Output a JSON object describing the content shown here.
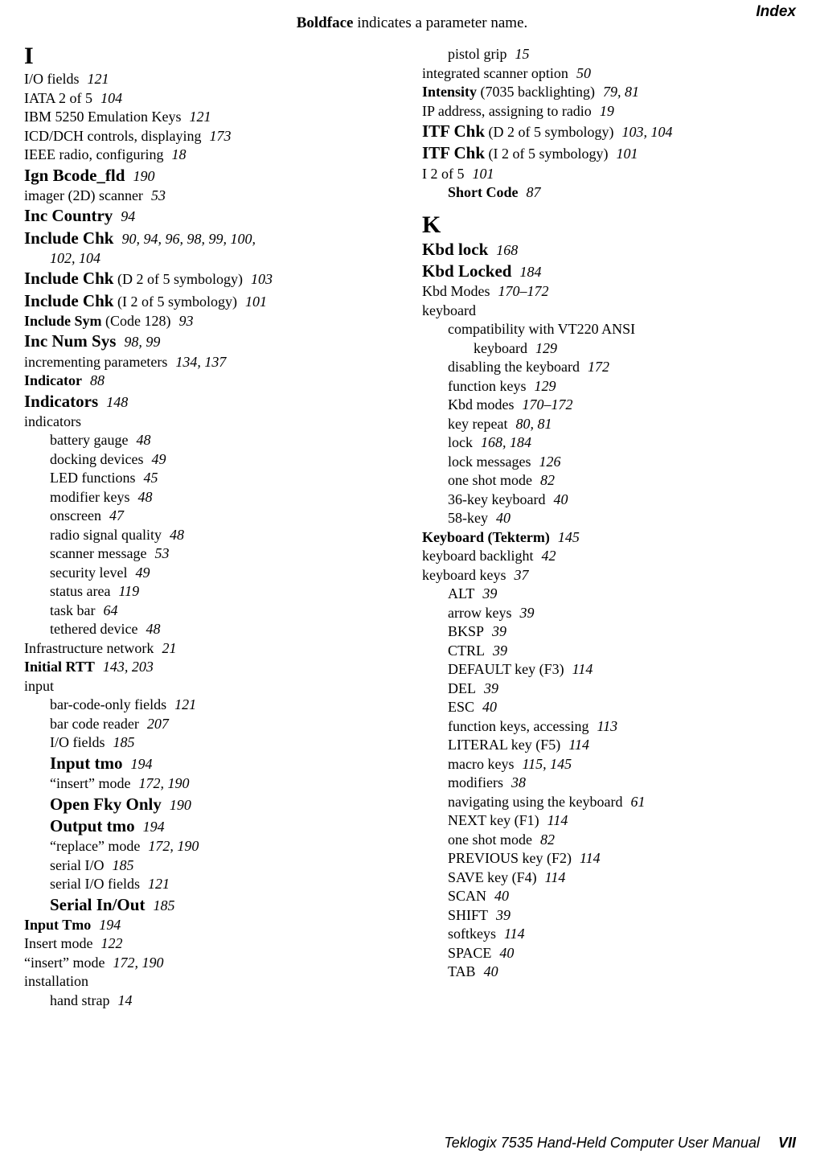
{
  "header_label": "Index",
  "top_note_bold": "Boldface",
  "top_note_rest": " indicates a parameter name.",
  "footer_text": "Teklogix 7535 Hand-Held Computer User Manual",
  "footer_page": "VII",
  "letters": {
    "I": "I",
    "K": "K"
  },
  "left": [
    {
      "t": "I/O fields",
      "p": "121"
    },
    {
      "t": "IATA 2 of 5",
      "p": "104"
    },
    {
      "t": "IBM 5250 Emulation Keys",
      "p": "121"
    },
    {
      "t": "ICD/DCH controls, displaying",
      "p": "173"
    },
    {
      "t": "IEEE radio, configuring",
      "p": "18"
    },
    {
      "t": "Ign Bcode_fld",
      "p": "190",
      "big": true
    },
    {
      "t": "imager (2D) scanner",
      "p": "53"
    },
    {
      "t": "Inc Country",
      "p": "94",
      "big": true
    },
    {
      "t": "Include Chk",
      "p": "90, 94, 96, 98, 99, 100,",
      "big": true
    },
    {
      "t": "102, 104",
      "sub": 1,
      "italic_only": true
    },
    {
      "t": "Include Chk",
      "suffix": " (D 2 of 5 symbology)",
      "p": "103",
      "big": true
    },
    {
      "t": "Include Chk",
      "suffix": " (I 2 of 5 symbology)",
      "p": "101",
      "big": true
    },
    {
      "t": "Include Sym",
      "suffix": " (Code 128)",
      "p": "93",
      "bold": true
    },
    {
      "t": "Inc Num Sys",
      "p": "98, 99",
      "big": true
    },
    {
      "t": "incrementing parameters",
      "p": "134, 137"
    },
    {
      "t": "Indicator",
      "p": "88",
      "bold": true
    },
    {
      "t": "Indicators",
      "p": "148",
      "big": true
    },
    {
      "t": "indicators"
    },
    {
      "t": "battery gauge",
      "p": "48",
      "sub": 1
    },
    {
      "t": "docking devices",
      "p": "49",
      "sub": 1
    },
    {
      "t": "LED functions",
      "p": "45",
      "sub": 1
    },
    {
      "t": "modifier keys",
      "p": "48",
      "sub": 1
    },
    {
      "t": "onscreen",
      "p": "47",
      "sub": 1
    },
    {
      "t": "radio signal quality",
      "p": "48",
      "sub": 1
    },
    {
      "t": "scanner message",
      "p": "53",
      "sub": 1
    },
    {
      "t": "security level",
      "p": "49",
      "sub": 1
    },
    {
      "t": "status area",
      "p": "119",
      "sub": 1
    },
    {
      "t": "task bar",
      "p": "64",
      "sub": 1
    },
    {
      "t": "tethered device",
      "p": "48",
      "sub": 1
    },
    {
      "t": "Infrastructure network",
      "p": "21"
    },
    {
      "t": "Initial RTT",
      "p": "143, 203",
      "bold": true
    },
    {
      "t": "input"
    },
    {
      "t": "bar-code-only fields",
      "p": "121",
      "sub": 1
    },
    {
      "t": "bar code reader",
      "p": "207",
      "sub": 1
    },
    {
      "t": "I/O fields",
      "p": "185",
      "sub": 1
    },
    {
      "t": "Input tmo",
      "p": "194",
      "sub": 1,
      "big": true
    },
    {
      "t": "“insert” mode",
      "p": "172, 190",
      "sub": 1
    },
    {
      "t": "Open Fky Only",
      "p": "190",
      "sub": 1,
      "big": true
    },
    {
      "t": "Output tmo",
      "p": "194",
      "sub": 1,
      "big": true
    },
    {
      "t": "“replace” mode",
      "p": "172, 190",
      "sub": 1
    },
    {
      "t": "serial I/O",
      "p": "185",
      "sub": 1
    },
    {
      "t": "serial I/O fields",
      "p": "121",
      "sub": 1
    },
    {
      "t": "Serial In/Out",
      "p": "185",
      "sub": 1,
      "big": true
    },
    {
      "t": "Input Tmo",
      "p": "194",
      "bold": true
    },
    {
      "t": "Insert mode",
      "p": "122"
    },
    {
      "t": "“insert” mode",
      "p": "172, 190"
    },
    {
      "t": "installation"
    },
    {
      "t": "hand strap",
      "p": "14",
      "sub": 1
    }
  ],
  "right_I": [
    {
      "t": "pistol grip",
      "p": "15",
      "sub": 1
    },
    {
      "t": "integrated scanner option",
      "p": "50"
    },
    {
      "t": "Intensity",
      "suffix": " (7035 backlighting)",
      "p": "79, 81",
      "bold": true
    },
    {
      "t": "IP address, assigning to radio",
      "p": "19"
    },
    {
      "t": "ITF Chk",
      "suffix": " (D 2 of 5 symbology)",
      "p": "103, 104",
      "big": true
    },
    {
      "t": "ITF Chk",
      "suffix": " (I 2 of 5 symbology)",
      "p": "101",
      "big": true
    },
    {
      "t": "I 2 of 5",
      "p": "101"
    },
    {
      "t": "Short Code",
      "p": "87",
      "sub": 1,
      "bold": true
    }
  ],
  "right_K": [
    {
      "t": "Kbd lock",
      "p": "168",
      "big": true
    },
    {
      "t": "Kbd Locked",
      "p": "184",
      "big": true
    },
    {
      "t": "Kbd Modes",
      "p": "170–172"
    },
    {
      "t": "keyboard"
    },
    {
      "t": "compatibility with VT220 ANSI",
      "sub": 1
    },
    {
      "t": "keyboard",
      "p": "129",
      "sub": 2
    },
    {
      "t": "disabling the keyboard",
      "p": "172",
      "sub": 1
    },
    {
      "t": "function keys",
      "p": "129",
      "sub": 1
    },
    {
      "t": "Kbd modes",
      "p": "170–172",
      "sub": 1
    },
    {
      "t": "key repeat",
      "p": "80, 81",
      "sub": 1
    },
    {
      "t": "lock",
      "p": "168, 184",
      "sub": 1
    },
    {
      "t": "lock messages",
      "p": "126",
      "sub": 1
    },
    {
      "t": "one shot mode",
      "p": "82",
      "sub": 1
    },
    {
      "t": "36-key keyboard",
      "p": "40",
      "sub": 1
    },
    {
      "t": "58-key",
      "p": "40",
      "sub": 1
    },
    {
      "t": "Keyboard (Tekterm)",
      "p": "145",
      "bold": true
    },
    {
      "t": "keyboard backlight",
      "p": "42"
    },
    {
      "t": "keyboard keys",
      "p": "37"
    },
    {
      "t": "ALT",
      "p": "39",
      "sub": 1
    },
    {
      "t": "arrow keys",
      "p": "39",
      "sub": 1
    },
    {
      "t": "BKSP",
      "p": "39",
      "sub": 1
    },
    {
      "t": "CTRL",
      "p": "39",
      "sub": 1
    },
    {
      "t": "DEFAULT key (F3)",
      "p": "114",
      "sub": 1
    },
    {
      "t": "DEL",
      "p": "39",
      "sub": 1
    },
    {
      "t": "ESC",
      "p": "40",
      "sub": 1
    },
    {
      "t": "function keys, accessing",
      "p": "113",
      "sub": 1
    },
    {
      "t": "LITERAL key (F5)",
      "p": "114",
      "sub": 1
    },
    {
      "t": "macro keys",
      "p": "115, 145",
      "sub": 1
    },
    {
      "t": "modifiers",
      "p": "38",
      "sub": 1
    },
    {
      "t": "navigating using the keyboard",
      "p": "61",
      "sub": 1
    },
    {
      "t": "NEXT key (F1)",
      "p": "114",
      "sub": 1
    },
    {
      "t": "one shot mode",
      "p": "82",
      "sub": 1
    },
    {
      "t": "PREVIOUS key (F2)",
      "p": "114",
      "sub": 1
    },
    {
      "t": "SAVE key (F4)",
      "p": "114",
      "sub": 1
    },
    {
      "t": "SCAN",
      "p": "40",
      "sub": 1
    },
    {
      "t": "SHIFT",
      "p": "39",
      "sub": 1
    },
    {
      "t": "softkeys",
      "p": "114",
      "sub": 1
    },
    {
      "t": "SPACE",
      "p": "40",
      "sub": 1
    },
    {
      "t": "TAB",
      "p": "40",
      "sub": 1
    }
  ]
}
